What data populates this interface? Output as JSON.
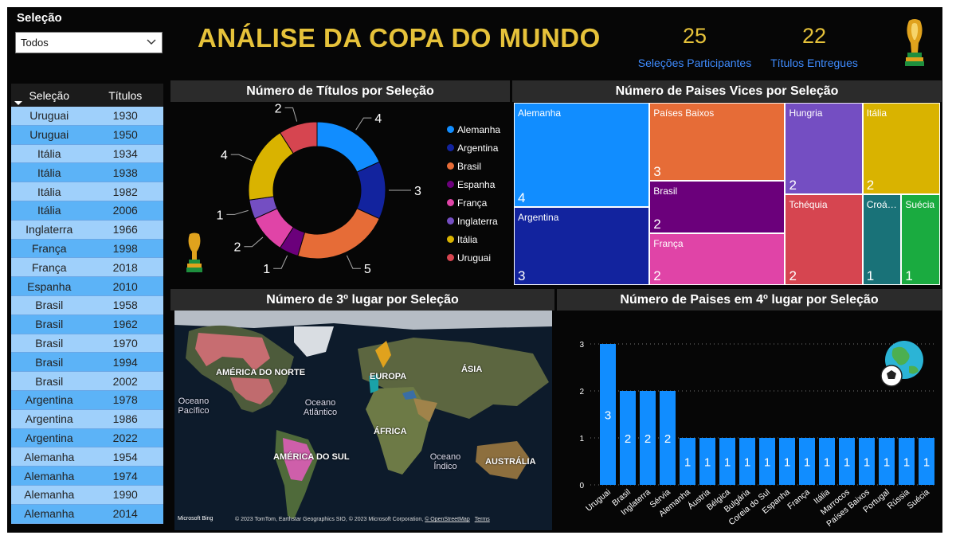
{
  "filter": {
    "label": "Seleção",
    "value": "Todos"
  },
  "header": {
    "title": "ANÁLISE DA COPA DO MUNDO"
  },
  "kpis": [
    {
      "value": "25",
      "label": "Seleções Participantes"
    },
    {
      "value": "22",
      "label": "Títulos Entregues"
    }
  ],
  "table": {
    "columns": [
      "Seleção",
      "Títulos"
    ],
    "rows": [
      [
        "Uruguai",
        "1930"
      ],
      [
        "Uruguai",
        "1950"
      ],
      [
        "Itália",
        "1934"
      ],
      [
        "Itália",
        "1938"
      ],
      [
        "Itália",
        "1982"
      ],
      [
        "Itália",
        "2006"
      ],
      [
        "Inglaterra",
        "1966"
      ],
      [
        "França",
        "1998"
      ],
      [
        "França",
        "2018"
      ],
      [
        "Espanha",
        "2010"
      ],
      [
        "Brasil",
        "1958"
      ],
      [
        "Brasil",
        "1962"
      ],
      [
        "Brasil",
        "1970"
      ],
      [
        "Brasil",
        "1994"
      ],
      [
        "Brasil",
        "2002"
      ],
      [
        "Argentina",
        "1978"
      ],
      [
        "Argentina",
        "1986"
      ],
      [
        "Argentina",
        "2022"
      ],
      [
        "Alemanha",
        "1954"
      ],
      [
        "Alemanha",
        "1974"
      ],
      [
        "Alemanha",
        "1990"
      ],
      [
        "Alemanha",
        "2014"
      ]
    ]
  },
  "donut": {
    "title": "Número de Títulos por Seleção",
    "chart_data": {
      "type": "pie",
      "categories": [
        "Alemanha",
        "Argentina",
        "Brasil",
        "Espanha",
        "França",
        "Inglaterra",
        "Itália",
        "Uruguai"
      ],
      "values": [
        4,
        3,
        5,
        1,
        2,
        1,
        4,
        2
      ],
      "colors": [
        "#118dff",
        "#12239e",
        "#e66c37",
        "#6b007b",
        "#e044a7",
        "#744ec2",
        "#d9b300",
        "#d64550"
      ],
      "legend": "right"
    }
  },
  "treemap": {
    "title": "Número de Paises Vices por Seleção",
    "chart_data": {
      "type": "treemap",
      "categories": [
        "Alemanha",
        "Argentina",
        "Países Baixos",
        "Brasil",
        "França",
        "Hungria",
        "Tchéquia",
        "Itália",
        "Croá…",
        "Suécia"
      ],
      "values": [
        4,
        3,
        3,
        2,
        2,
        2,
        2,
        2,
        1,
        1
      ],
      "colors": [
        "#118dff",
        "#12239e",
        "#e66c37",
        "#6b007b",
        "#e044a7",
        "#744ec2",
        "#d64550",
        "#d9b300",
        "#197278",
        "#1aab40"
      ]
    }
  },
  "map": {
    "title": "Número de 3º lugar por Seleção",
    "labels": {
      "na": "AMÉRICA DO NORTE",
      "eu": "EUROPA",
      "as": "ÁSIA",
      "af": "ÁFRICA",
      "sa": "AMÉRICA DO SUL",
      "au": "AUSTRÁLIA",
      "pac": "Oceano Pacífico",
      "atl": "Oceano Atlântico",
      "ind": "Oceano Índico"
    },
    "footer": {
      "bing": "Microsoft Bing",
      "copyright": "© 2023 TomTom, Earthstar Geographics SIO, © 2023 Microsoft Corporation,",
      "osm": "© OpenStreetMap",
      "terms": "Terms"
    }
  },
  "bar": {
    "title": "Número de Paises em 4º lugar por Seleção",
    "chart_data": {
      "type": "bar",
      "categories": [
        "Uruguai",
        "Brasil",
        "Inglaterra",
        "Sérvia",
        "Alemanha",
        "Áustria",
        "Bélgica",
        "Bulgária",
        "Coreia do Sul",
        "Espanha",
        "França",
        "Itália",
        "Marrocos",
        "Países Baixos",
        "Portugal",
        "Rússia",
        "Suécia"
      ],
      "values": [
        3,
        2,
        2,
        2,
        1,
        1,
        1,
        1,
        1,
        1,
        1,
        1,
        1,
        1,
        1,
        1,
        1
      ],
      "yticks": [
        "0",
        "1",
        "2",
        "3"
      ],
      "ylim": [
        0,
        3
      ],
      "color": "#118dff",
      "grid": true
    }
  }
}
